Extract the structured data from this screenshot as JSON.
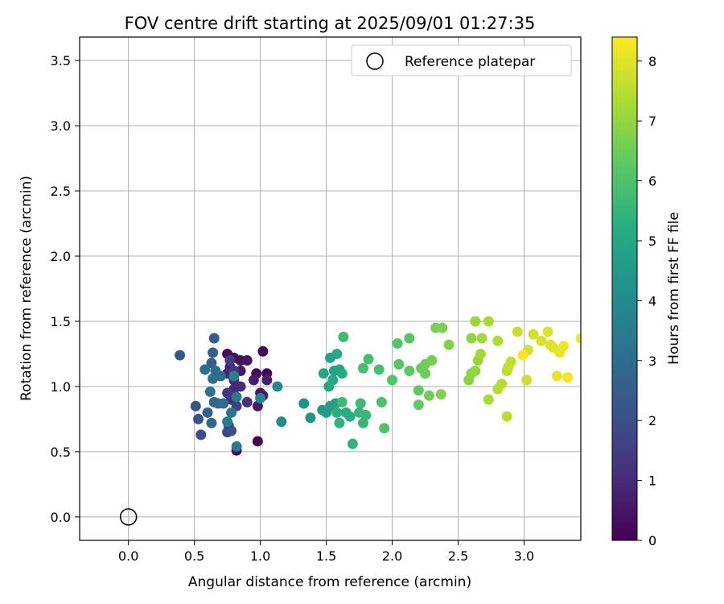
{
  "chart_data": {
    "type": "scatter",
    "title": "FOV centre drift starting at 2025/09/01 01:27:35",
    "xlabel": "Angular distance from reference (arcmin)",
    "ylabel": "Rotation from reference (arcmin)",
    "xlim": [
      -0.37,
      3.43
    ],
    "ylim": [
      -0.18,
      3.68
    ],
    "xticks": [
      0.0,
      0.5,
      1.0,
      1.5,
      2.0,
      2.5,
      3.0
    ],
    "xtick_labels": [
      "0.0",
      "0.5",
      "1.0",
      "1.5",
      "2.0",
      "2.5",
      "3.0"
    ],
    "yticks": [
      0.0,
      0.5,
      1.0,
      1.5,
      2.0,
      2.5,
      3.0,
      3.5
    ],
    "ytick_labels": [
      "0.0",
      "0.5",
      "1.0",
      "1.5",
      "2.0",
      "2.5",
      "3.0",
      "3.5"
    ],
    "grid": true,
    "legend": {
      "position": "top-right",
      "label": "Reference platepar"
    },
    "reference_point": {
      "x": 0.0,
      "y": 0.0
    },
    "colorbar": {
      "label": "Hours from first FF file",
      "colormap": "viridis",
      "range": [
        0,
        8.4
      ],
      "ticks": [
        0,
        1,
        2,
        3,
        4,
        5,
        6,
        7,
        8
      ],
      "tick_labels": [
        "0",
        "1",
        "2",
        "3",
        "4",
        "5",
        "6",
        "7",
        "8"
      ]
    },
    "points": [
      [
        0.98,
        0.58,
        0.05
      ],
      [
        0.82,
        0.51,
        0.3
      ],
      [
        1.05,
        1.1,
        0.1
      ],
      [
        1.02,
        1.27,
        0.15
      ],
      [
        0.97,
        1.1,
        0.2
      ],
      [
        0.75,
        1.25,
        0.25
      ],
      [
        0.8,
        1.22,
        0.35
      ],
      [
        0.85,
        1.2,
        0.4
      ],
      [
        0.85,
        1.12,
        0.5
      ],
      [
        0.9,
        1.2,
        0.45
      ],
      [
        1.0,
        0.95,
        0.55
      ],
      [
        0.98,
        0.85,
        0.6
      ],
      [
        1.02,
        0.93,
        0.65
      ],
      [
        0.95,
        1.05,
        0.7
      ],
      [
        1.05,
        1.05,
        0.75
      ],
      [
        0.77,
        1.15,
        0.8
      ],
      [
        0.8,
        1.05,
        0.85
      ],
      [
        0.75,
        1.1,
        0.9
      ],
      [
        0.8,
        0.98,
        0.95
      ],
      [
        0.85,
        1.0,
        1.0
      ],
      [
        0.9,
        0.88,
        1.1
      ],
      [
        0.78,
        0.9,
        1.2
      ],
      [
        0.75,
        0.95,
        1.3
      ],
      [
        0.8,
        1.12,
        1.4
      ],
      [
        0.77,
        1.2,
        1.5
      ],
      [
        0.82,
        0.85,
        1.6
      ],
      [
        0.76,
        0.7,
        1.7
      ],
      [
        0.75,
        0.65,
        1.8
      ],
      [
        0.78,
        0.66,
        1.9
      ],
      [
        0.55,
        0.63,
        2.0
      ],
      [
        0.53,
        0.75,
        2.1
      ],
      [
        0.51,
        0.85,
        2.2
      ],
      [
        0.39,
        1.24,
        2.3
      ],
      [
        0.65,
        1.37,
        2.4
      ],
      [
        0.64,
        1.26,
        2.5
      ],
      [
        0.63,
        1.18,
        2.55
      ],
      [
        0.6,
        0.8,
        2.6
      ],
      [
        0.63,
        0.72,
        2.7
      ],
      [
        0.65,
        0.88,
        2.75
      ],
      [
        0.68,
        0.87,
        2.8
      ],
      [
        0.72,
        0.87,
        2.9
      ],
      [
        0.7,
        1.08,
        2.95
      ],
      [
        0.66,
        1.12,
        3.0
      ],
      [
        0.64,
        1.06,
        3.05
      ],
      [
        0.58,
        1.13,
        3.1
      ],
      [
        0.62,
        0.96,
        3.2
      ],
      [
        0.78,
        0.8,
        3.3
      ],
      [
        0.82,
        0.54,
        3.4
      ],
      [
        0.82,
        0.92,
        3.5
      ],
      [
        0.75,
        0.73,
        3.6
      ],
      [
        0.8,
        1.08,
        3.7
      ],
      [
        1.0,
        0.91,
        3.8
      ],
      [
        1.13,
        1.0,
        3.9
      ],
      [
        1.16,
        0.73,
        4.0
      ],
      [
        1.33,
        0.87,
        4.2
      ],
      [
        1.38,
        0.76,
        4.3
      ],
      [
        1.47,
        0.82,
        4.5
      ],
      [
        1.5,
        0.8,
        4.6
      ],
      [
        1.53,
        0.85,
        4.7
      ],
      [
        1.57,
        0.87,
        4.75
      ],
      [
        1.53,
        1.22,
        4.8
      ],
      [
        1.56,
        1.12,
        4.85
      ],
      [
        1.6,
        1.13,
        4.9
      ],
      [
        1.48,
        1.1,
        4.95
      ],
      [
        1.52,
        1.0,
        5.0
      ],
      [
        1.55,
        1.05,
        5.05
      ],
      [
        1.58,
        1.25,
        5.1
      ],
      [
        1.62,
        1.1,
        5.15
      ],
      [
        1.65,
        0.8,
        5.2
      ],
      [
        1.68,
        0.77,
        5.25
      ],
      [
        1.58,
        0.8,
        5.3
      ],
      [
        1.6,
        0.72,
        5.4
      ],
      [
        1.7,
        0.56,
        5.45
      ],
      [
        1.75,
        0.8,
        5.5
      ],
      [
        1.78,
        0.72,
        5.55
      ],
      [
        1.8,
        0.78,
        5.6
      ],
      [
        1.76,
        0.87,
        5.65
      ],
      [
        1.62,
        0.88,
        5.7
      ],
      [
        1.63,
        1.38,
        5.75
      ],
      [
        1.82,
        1.21,
        5.8
      ],
      [
        1.78,
        1.14,
        5.85
      ],
      [
        1.9,
        1.13,
        5.9
      ],
      [
        1.92,
        0.88,
        5.95
      ],
      [
        1.94,
        0.68,
        6.0
      ],
      [
        2.0,
        1.05,
        6.05
      ],
      [
        2.04,
        1.33,
        6.1
      ],
      [
        2.05,
        1.17,
        6.15
      ],
      [
        2.13,
        1.37,
        6.2
      ],
      [
        2.13,
        1.12,
        6.25
      ],
      [
        2.2,
        0.97,
        6.3
      ],
      [
        2.2,
        0.86,
        6.35
      ],
      [
        2.22,
        1.14,
        6.4
      ],
      [
        2.25,
        1.1,
        6.45
      ],
      [
        2.25,
        1.17,
        6.5
      ],
      [
        2.28,
        0.93,
        6.55
      ],
      [
        2.3,
        1.2,
        6.6
      ],
      [
        2.33,
        1.45,
        6.65
      ],
      [
        2.38,
        1.45,
        6.7
      ],
      [
        2.37,
        0.94,
        6.75
      ],
      [
        2.43,
        1.32,
        6.8
      ],
      [
        2.58,
        1.05,
        6.85
      ],
      [
        2.6,
        1.1,
        6.9
      ],
      [
        2.6,
        1.37,
        6.95
      ],
      [
        2.63,
        1.12,
        7.0
      ],
      [
        2.65,
        1.2,
        7.05
      ],
      [
        2.63,
        1.5,
        7.1
      ],
      [
        2.68,
        1.37,
        7.15
      ],
      [
        2.67,
        1.25,
        7.2
      ],
      [
        2.73,
        1.5,
        7.25
      ],
      [
        2.73,
        0.9,
        7.3
      ],
      [
        2.8,
        1.35,
        7.35
      ],
      [
        2.8,
        0.98,
        7.4
      ],
      [
        2.83,
        1.02,
        7.45
      ],
      [
        2.87,
        1.12,
        7.5
      ],
      [
        2.87,
        0.77,
        7.55
      ],
      [
        2.9,
        1.19,
        7.6
      ],
      [
        2.88,
        1.15,
        7.65
      ],
      [
        2.95,
        1.42,
        7.7
      ],
      [
        3.02,
        1.05,
        7.75
      ],
      [
        3.03,
        1.28,
        7.8
      ],
      [
        3.07,
        1.4,
        7.85
      ],
      [
        3.13,
        1.35,
        7.9
      ],
      [
        3.18,
        1.42,
        7.95
      ],
      [
        3.2,
        1.32,
        8.0
      ],
      [
        3.22,
        1.3,
        8.05
      ],
      [
        3.25,
        1.08,
        8.1
      ],
      [
        3.27,
        1.26,
        8.15
      ],
      [
        3.3,
        1.31,
        8.2
      ],
      [
        3.33,
        1.07,
        8.25
      ],
      [
        3.43,
        1.37,
        8.3
      ],
      [
        2.99,
        1.24,
        8.35
      ]
    ]
  }
}
